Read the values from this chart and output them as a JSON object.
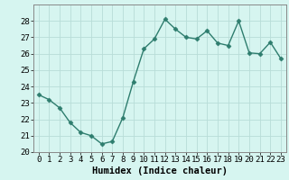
{
  "xlabel": "Humidex (Indice chaleur)",
  "x_values": [
    0,
    1,
    2,
    3,
    4,
    5,
    6,
    7,
    8,
    9,
    10,
    11,
    12,
    13,
    14,
    15,
    16,
    17,
    18,
    19,
    20,
    21,
    22,
    23
  ],
  "y_values": [
    23.5,
    23.2,
    22.7,
    21.8,
    21.2,
    21.0,
    20.5,
    20.65,
    22.1,
    24.3,
    26.3,
    26.9,
    28.1,
    27.5,
    27.0,
    26.9,
    27.4,
    26.65,
    26.5,
    28.0,
    26.05,
    26.0,
    26.7,
    25.7
  ],
  "line_color": "#2e7d6e",
  "marker": "D",
  "marker_size": 2.5,
  "background_color": "#d6f5f0",
  "grid_color": "#b8ddd8",
  "ylim_min": 20,
  "ylim_max": 29,
  "yticks": [
    20,
    21,
    22,
    23,
    24,
    25,
    26,
    27,
    28
  ],
  "xlim_min": -0.5,
  "xlim_max": 23.5,
  "xticks": [
    0,
    1,
    2,
    3,
    4,
    5,
    6,
    7,
    8,
    9,
    10,
    11,
    12,
    13,
    14,
    15,
    16,
    17,
    18,
    19,
    20,
    21,
    22,
    23
  ],
  "tick_fontsize": 6.5,
  "xlabel_fontsize": 7.5,
  "spine_color": "#888888",
  "line_width": 1.0
}
